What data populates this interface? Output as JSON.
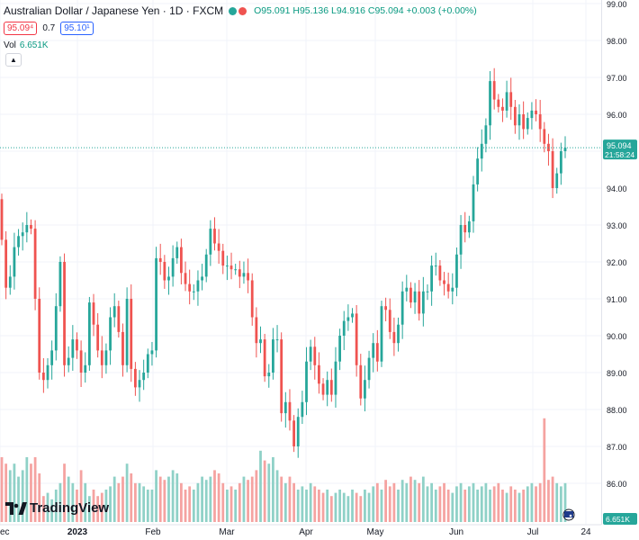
{
  "legend": {
    "symbol_title": "Australian Dollar / Japanese Yen · 1D · FXCM",
    "open_label": "O",
    "open": "95.091",
    "high_label": "H",
    "high": "95.136",
    "low_label": "L",
    "low": "94.916",
    "close_label": "C",
    "close": "95.094",
    "change": "+0.003 (+0.00%)",
    "sell_price": "95.09⁴",
    "spread": "0.7",
    "buy_price": "95.10¹",
    "vol_label": "Vol",
    "vol_value": "6.651K"
  },
  "logo_text": "TradingView",
  "colors": {
    "up": "#26a69a",
    "down": "#ef5350",
    "vol_up": "#8fd1c7",
    "vol_down": "#f5a3a1",
    "grid": "#f0f3fa"
  },
  "chart_data": {
    "type": "candlestick",
    "title": "Australian Dollar / Japanese Yen · 1D · FXCM",
    "ylim": [
      85.5,
      99.0
    ],
    "y_ticks": [
      "86.00",
      "87.00",
      "88.00",
      "89.00",
      "90.00",
      "91.00",
      "92.00",
      "93.00",
      "94.00",
      "95.00",
      "96.00",
      "97.00",
      "98.00",
      "99.00"
    ],
    "x_ticks": [
      "ec",
      "2023",
      "Feb",
      "Mar",
      "Apr",
      "May",
      "Jun",
      "Jul",
      "24"
    ],
    "current_price_label": "95.094",
    "countdown_label": "21:58:24",
    "volume_label": "6.651K",
    "close_values": [
      92.6,
      91.3,
      91.6,
      92.4,
      92.7,
      92.8,
      93.0,
      92.9,
      91.0,
      89.0,
      88.8,
      89.2,
      89.6,
      90.8,
      92.0,
      89.2,
      89.4,
      89.9,
      89.6,
      89.0,
      89.2,
      90.9,
      90.3,
      89.6,
      89.2,
      89.6,
      90.5,
      90.8,
      90.1,
      89.2,
      91.0,
      89.1,
      88.6,
      88.8,
      89.0,
      89.5,
      89.6,
      92.1,
      92.0,
      91.5,
      91.6,
      92.1,
      92.4,
      91.7,
      91.4,
      91.2,
      91.2,
      91.5,
      91.6,
      92.2,
      92.9,
      92.5,
      92.3,
      91.9,
      91.9,
      91.8,
      91.8,
      91.6,
      91.7,
      91.5,
      90.5,
      89.8,
      89.9,
      88.9,
      89.0,
      89.9,
      89.9,
      87.9,
      88.2,
      87.7,
      87.0,
      87.8,
      88.2,
      89.3,
      89.7,
      89.2,
      88.7,
      88.4,
      88.8,
      88.4,
      89.3,
      90.0,
      90.4,
      90.5,
      90.6,
      89.2,
      88.3,
      88.8,
      89.4,
      89.8,
      89.3,
      90.8,
      90.7,
      90.1,
      89.8,
      90.3,
      91.2,
      91.3,
      90.9,
      91.2,
      90.6,
      91.2,
      91.2,
      91.9,
      91.9,
      91.5,
      91.4,
      91.2,
      91.3,
      92.2,
      93.0,
      92.8,
      93.1,
      94.1,
      94.8,
      95.2,
      95.7,
      96.9,
      96.4,
      96.2,
      96.1,
      96.6,
      96.2,
      95.7,
      96.0,
      95.6,
      95.9,
      96.1,
      96.0,
      95.6,
      95.2,
      95.0,
      94.0,
      94.4,
      95.0,
      95.094
    ],
    "volume_relative": [
      1.0,
      0.9,
      0.8,
      0.9,
      0.7,
      0.8,
      1.0,
      0.9,
      1.0,
      0.75,
      0.4,
      0.45,
      0.35,
      0.5,
      0.6,
      0.9,
      0.7,
      0.6,
      0.5,
      0.8,
      0.6,
      0.4,
      0.5,
      0.4,
      0.45,
      0.5,
      0.55,
      0.7,
      0.6,
      0.7,
      0.9,
      0.75,
      0.6,
      0.6,
      0.55,
      0.5,
      0.5,
      0.8,
      0.7,
      0.65,
      0.7,
      0.8,
      0.75,
      0.6,
      0.5,
      0.55,
      0.5,
      0.6,
      0.7,
      0.65,
      0.7,
      0.8,
      0.75,
      0.6,
      0.5,
      0.55,
      0.5,
      0.6,
      0.7,
      0.65,
      0.7,
      0.8,
      1.1,
      0.95,
      0.9,
      1.0,
      0.8,
      0.7,
      0.6,
      0.7,
      0.6,
      0.5,
      0.55,
      0.5,
      0.6,
      0.55,
      0.5,
      0.45,
      0.5,
      0.4,
      0.45,
      0.5,
      0.45,
      0.4,
      0.5,
      0.45,
      0.4,
      0.5,
      0.45,
      0.55,
      0.6,
      0.5,
      0.65,
      0.55,
      0.6,
      0.5,
      0.65,
      0.6,
      0.7,
      0.65,
      0.6,
      0.7,
      0.55,
      0.6,
      0.5,
      0.55,
      0.6,
      0.5,
      0.45,
      0.55,
      0.6,
      0.5,
      0.55,
      0.6,
      0.5,
      0.55,
      0.6,
      0.5,
      0.55,
      0.6,
      0.5,
      0.45,
      0.55,
      0.5,
      0.45,
      0.5,
      0.55,
      0.6,
      0.55,
      0.6,
      1.6,
      0.65,
      0.7,
      0.6,
      0.55,
      0.6
    ]
  }
}
